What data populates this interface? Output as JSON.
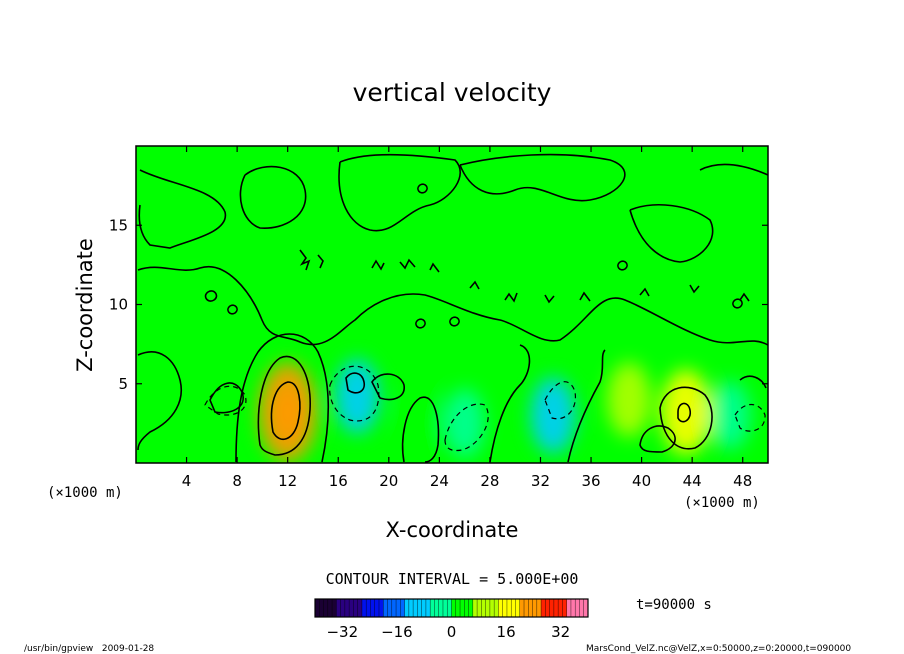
{
  "chart_data": {
    "type": "heatmap",
    "title": "vertical velocity",
    "xlabel": "X-coordinate",
    "ylabel": "Z-coordinate",
    "x_unit_left": "(×1000 m)",
    "x_unit_right": "(×1000 m)",
    "xlim": [
      0,
      50
    ],
    "ylim": [
      0,
      20
    ],
    "xticks": [
      4,
      8,
      12,
      16,
      20,
      24,
      28,
      32,
      36,
      40,
      44,
      48
    ],
    "yticks": [
      5,
      10,
      15
    ],
    "contour_interval_text": "CONTOUR INTERVAL = 5.000E+00",
    "time_text": "t=90000 s",
    "colorbar": {
      "ticks": [
        -32,
        -16,
        0,
        16,
        32
      ],
      "range": [
        -40,
        40
      ],
      "colors": [
        "#1a0033",
        "#2a0080",
        "#0011ee",
        "#0066ff",
        "#00ccff",
        "#00ff99",
        "#00ff00",
        "#b3ff00",
        "#ffff00",
        "#ff9900",
        "#ff2200",
        "#ff77aa"
      ]
    },
    "background_value": 0,
    "features": [
      {
        "x": 12,
        "z": 3.2,
        "value": 22,
        "type": "updraft"
      },
      {
        "x": 17.5,
        "z": 4.2,
        "value": -8,
        "type": "downdraft"
      },
      {
        "x": 22.5,
        "z": 3,
        "value": 6,
        "type": "updraft"
      },
      {
        "x": 26,
        "z": 2.5,
        "value": -5,
        "type": "downdraft"
      },
      {
        "x": 33,
        "z": 3,
        "value": -9,
        "type": "downdraft"
      },
      {
        "x": 39,
        "z": 4,
        "value": 8,
        "type": "updraft"
      },
      {
        "x": 43.5,
        "z": 3.2,
        "value": 14,
        "type": "updraft"
      },
      {
        "x": 47,
        "z": 3,
        "value": -5,
        "type": "downdraft"
      }
    ]
  },
  "footer": {
    "left": "/usr/bin/gpview   2009-01-28",
    "right": "MarsCond_VelZ.nc@VelZ,x=0:50000,z=0:20000,t=090000"
  },
  "colors": {
    "field_background": "#00ff00",
    "contour": "#000000"
  }
}
